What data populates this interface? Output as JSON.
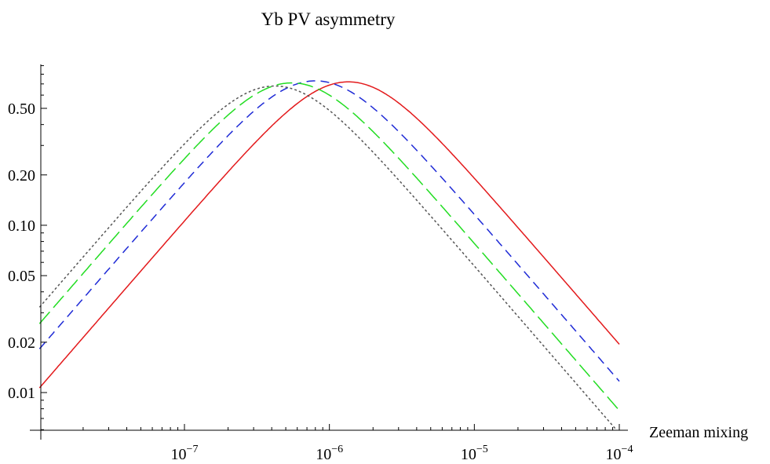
{
  "chart_data": {
    "type": "line",
    "title": "Yb PV asymmetry",
    "xlabel": "Zeeman mixing",
    "ylabel": "",
    "x_scale": "log",
    "y_scale": "log",
    "xlim": [
      1e-08,
      0.0001
    ],
    "ylim": [
      0.006,
      0.9
    ],
    "x_ticks": [
      {
        "value": 1e-07,
        "base": "10",
        "exp": "−7"
      },
      {
        "value": 1e-06,
        "base": "10",
        "exp": "−6"
      },
      {
        "value": 1e-05,
        "base": "10",
        "exp": "−5"
      },
      {
        "value": 0.0001,
        "base": "10",
        "exp": "−4"
      }
    ],
    "y_ticks": [
      {
        "value": 0.5,
        "label": "0.50"
      },
      {
        "value": 0.2,
        "label": "0.20"
      },
      {
        "value": 0.1,
        "label": "0.10"
      },
      {
        "value": 0.05,
        "label": "0.05"
      },
      {
        "value": 0.02,
        "label": "0.02"
      },
      {
        "value": 0.01,
        "label": "0.01"
      }
    ],
    "grid": false,
    "legend": "none",
    "series": [
      {
        "color": "#e31a1c",
        "style": "solid",
        "peak_x": 1.35e-06,
        "peak_y": 0.72
      },
      {
        "color": "#1f2bd6",
        "style": "dashed",
        "peak_x": 8e-07,
        "peak_y": 0.73
      },
      {
        "color": "#22dd22",
        "style": "longdash",
        "peak_x": 5.5e-07,
        "peak_y": 0.71
      },
      {
        "color": "#555555",
        "style": "dotted",
        "peak_x": 4.2e-07,
        "peak_y": 0.68
      }
    ]
  }
}
